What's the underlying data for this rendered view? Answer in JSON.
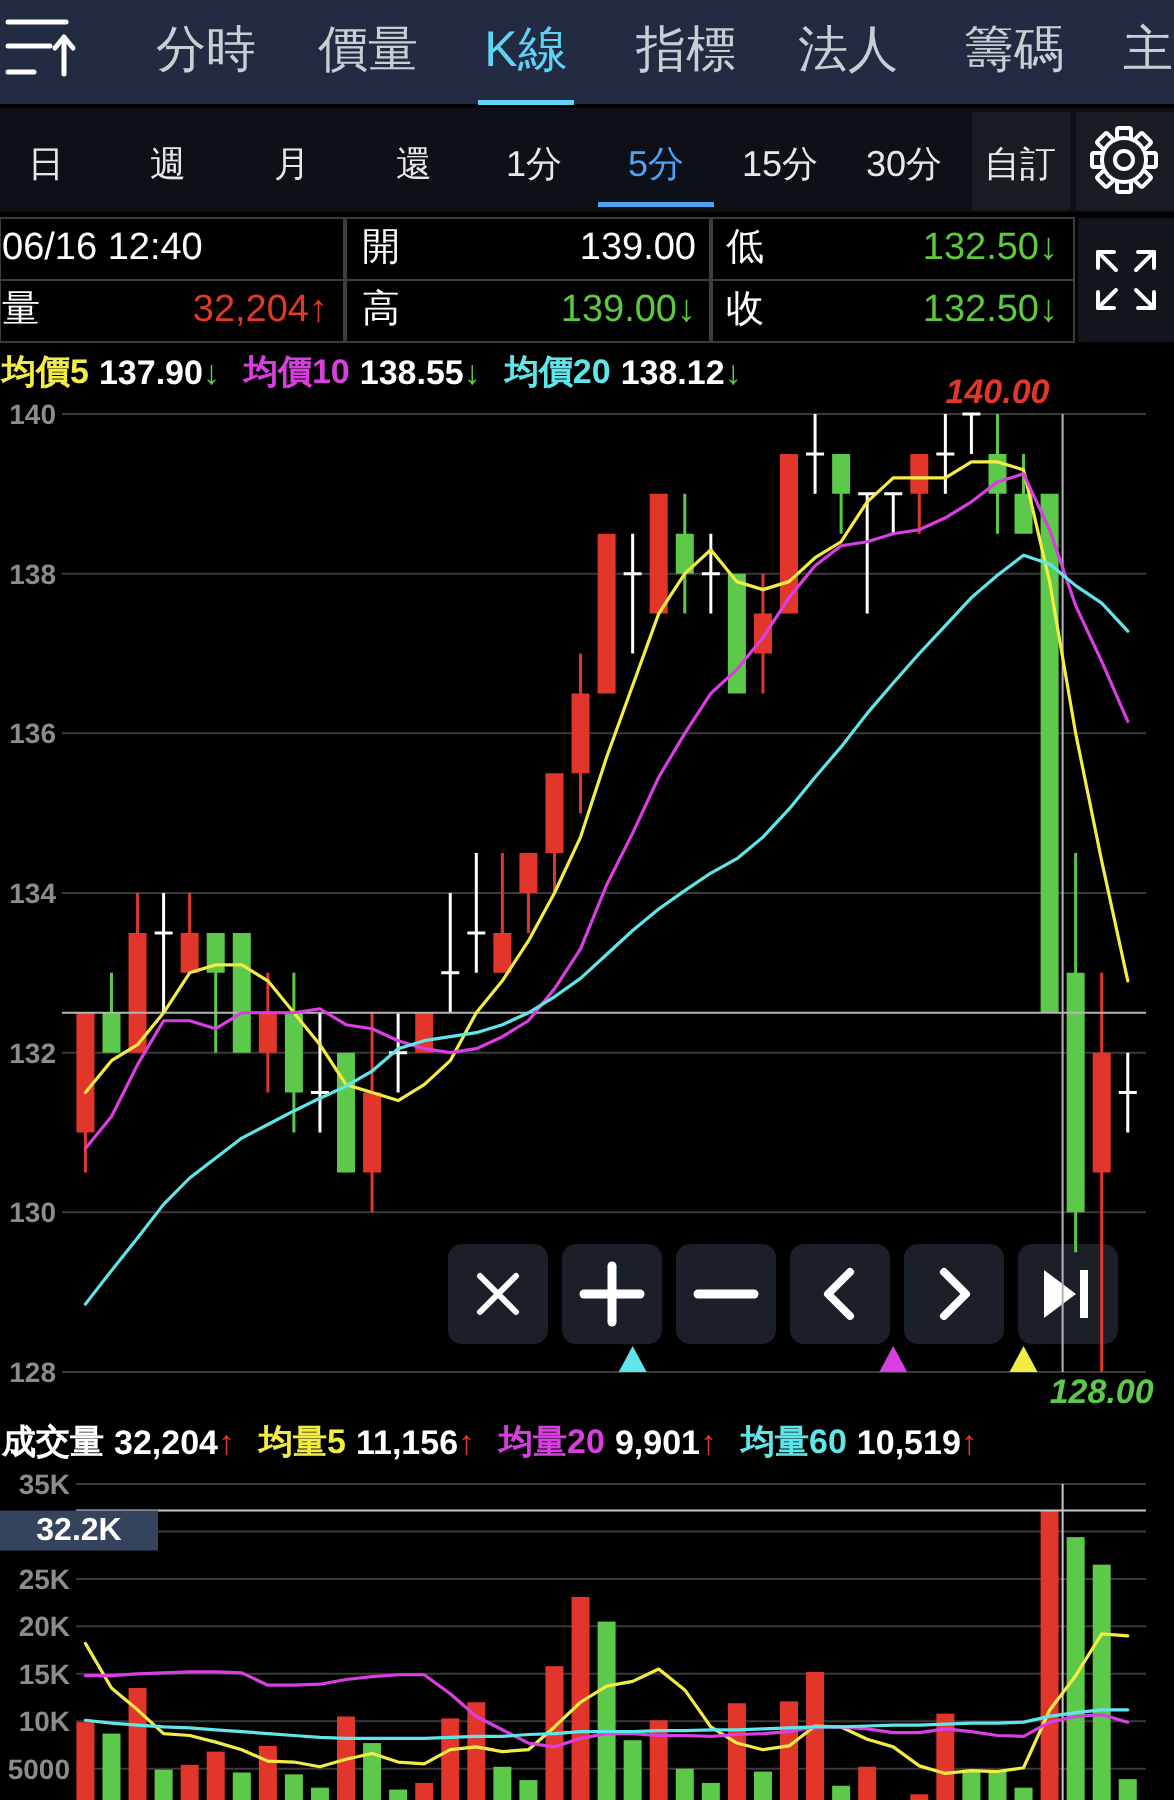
{
  "chart_data": [
    {
      "type": "other",
      "annotations": [
        "分時",
        "價量",
        "K線",
        "指標",
        "法人",
        "籌碼",
        "主",
        "日",
        "週",
        "月",
        "還",
        "1分",
        "5分",
        "15分",
        "30分",
        "自訂",
        "06/16 12:40",
        "開",
        "139.00",
        "低",
        "132.50↓",
        "量",
        "32,204↑",
        "高",
        "139.00↓",
        "收",
        "132.50↓"
      ]
    },
    {
      "type": "candlestick",
      "categories": [
        null,
        null,
        null,
        null,
        null,
        null,
        null,
        null,
        null,
        null,
        null,
        null,
        null,
        null,
        null,
        null,
        null,
        null,
        null,
        null,
        null,
        null,
        null,
        null,
        null,
        null,
        null,
        null,
        null,
        null,
        null,
        null,
        null,
        null,
        null,
        null,
        null,
        null,
        null,
        null,
        null
      ],
      "ohlc": [
        [
          131.0,
          132.5,
          130.5,
          132.5
        ],
        [
          132.5,
          133.0,
          132.0,
          132.0
        ],
        [
          132.0,
          134.0,
          132.0,
          133.5
        ],
        [
          133.5,
          134.0,
          132.5,
          133.5
        ],
        [
          133.0,
          134.0,
          133.0,
          133.5
        ],
        [
          133.5,
          133.5,
          132.0,
          133.0
        ],
        [
          133.5,
          133.5,
          132.0,
          132.0
        ],
        [
          132.0,
          133.0,
          131.5,
          132.5
        ],
        [
          132.5,
          133.0,
          131.0,
          131.5
        ],
        [
          131.5,
          132.5,
          131.0,
          131.5
        ],
        [
          132.0,
          132.0,
          130.5,
          130.5
        ],
        [
          130.5,
          132.5,
          130.0,
          131.5
        ],
        [
          132.0,
          132.5,
          131.5,
          132.0
        ],
        [
          132.0,
          132.5,
          132.0,
          132.5
        ],
        [
          133.0,
          134.0,
          132.5,
          133.0
        ],
        [
          133.5,
          134.5,
          133.0,
          133.5
        ],
        [
          133.0,
          134.5,
          133.0,
          133.5
        ],
        [
          134.0,
          134.5,
          133.5,
          134.5
        ],
        [
          134.5,
          135.5,
          134.0,
          135.5
        ],
        [
          135.5,
          137.0,
          135.0,
          136.5
        ],
        [
          136.5,
          138.5,
          136.5,
          138.5
        ],
        [
          138.0,
          138.5,
          137.0,
          138.0
        ],
        [
          137.5,
          139.0,
          137.5,
          139.0
        ],
        [
          138.5,
          139.0,
          137.5,
          138.0
        ],
        [
          138.0,
          138.5,
          137.5,
          138.0
        ],
        [
          138.0,
          138.0,
          136.5,
          136.5
        ],
        [
          137.0,
          138.0,
          136.5,
          137.5
        ],
        [
          137.5,
          139.5,
          137.5,
          139.5
        ],
        [
          139.5,
          140.0,
          139.0,
          139.5
        ],
        [
          139.5,
          139.5,
          138.5,
          139.0
        ],
        [
          139.0,
          139.0,
          137.5,
          139.0
        ],
        [
          139.0,
          139.0,
          138.5,
          139.0
        ],
        [
          139.0,
          139.5,
          138.5,
          139.5
        ],
        [
          139.5,
          140.0,
          139.0,
          139.5
        ],
        [
          140.0,
          140.0,
          139.5,
          140.0
        ],
        [
          139.5,
          140.0,
          138.5,
          139.0
        ],
        [
          139.0,
          139.5,
          138.5,
          138.5
        ],
        [
          139.0,
          139.0,
          132.5,
          132.5
        ],
        [
          133.0,
          134.5,
          129.5,
          130.0
        ],
        [
          130.5,
          133.0,
          128.0,
          132.0
        ],
        [
          131.5,
          132.0,
          131.0,
          131.5
        ]
      ],
      "colors": [
        "#e3362a",
        "#5dc94b",
        "#e3362a",
        "#ffffff",
        "#e3362a",
        "#5dc94b",
        "#5dc94b",
        "#e3362a",
        "#5dc94b",
        "#ffffff",
        "#5dc94b",
        "#e3362a",
        "#ffffff",
        "#e3362a",
        "#ffffff",
        "#ffffff",
        "#e3362a",
        "#e3362a",
        "#e3362a",
        "#e3362a",
        "#e3362a",
        "#ffffff",
        "#e3362a",
        "#5dc94b",
        "#ffffff",
        "#5dc94b",
        "#e3362a",
        "#e3362a",
        "#ffffff",
        "#5dc94b",
        "#ffffff",
        "#ffffff",
        "#e3362a",
        "#ffffff",
        "#ffffff",
        "#5dc94b",
        "#5dc94b",
        "#5dc94b",
        "#5dc94b",
        "#e3362a",
        "#ffffff"
      ],
      "series": [
        {
          "name": "均價5",
          "type": "line",
          "color": "#f3ec44",
          "values": [
            131.5,
            131.9,
            132.1,
            132.5,
            133.0,
            133.1,
            133.1,
            132.9,
            132.5,
            132.1,
            131.6,
            131.5,
            131.4,
            131.6,
            131.9,
            132.5,
            132.9,
            133.4,
            134.0,
            134.7,
            135.7,
            136.6,
            137.5,
            138.0,
            138.3,
            137.9,
            137.8,
            137.9,
            138.2,
            138.4,
            138.9,
            139.2,
            139.2,
            139.2,
            139.4,
            139.4,
            139.3,
            137.9,
            136.0,
            134.4,
            132.9
          ]
        },
        {
          "name": "均價10",
          "type": "line",
          "color": "#d93fe0",
          "values": [
            130.8,
            131.2,
            131.85,
            132.4,
            132.4,
            132.3,
            132.5,
            132.5,
            132.5,
            132.55,
            132.35,
            132.3,
            132.15,
            132.05,
            132.0,
            132.05,
            132.2,
            132.4,
            132.8,
            133.3,
            134.1,
            134.75,
            135.45,
            136.0,
            136.5,
            136.8,
            137.2,
            137.7,
            138.1,
            138.35,
            138.4,
            138.5,
            138.55,
            138.7,
            138.9,
            139.15,
            139.25,
            138.55,
            137.6,
            136.9,
            136.15
          ]
        },
        {
          "name": "均價20",
          "type": "line",
          "color": "#5fe6ea",
          "values": [
            128.85,
            129.27,
            129.68,
            130.1,
            130.43,
            130.68,
            130.93,
            131.1,
            131.27,
            131.43,
            131.58,
            131.77,
            132.05,
            132.15,
            132.2,
            132.25,
            132.35,
            132.5,
            132.7,
            132.93,
            133.23,
            133.53,
            133.8,
            134.03,
            134.25,
            134.43,
            134.7,
            135.05,
            135.45,
            135.83,
            136.25,
            136.63,
            137.0,
            137.35,
            137.7,
            137.98,
            138.23,
            138.12,
            137.85,
            137.63,
            137.28
          ]
        }
      ],
      "ylim": [
        128,
        140
      ],
      "yticks": [
        140,
        138,
        136,
        134,
        132,
        130,
        128
      ],
      "grid": "y",
      "legend": "top left",
      "ref_lines": [
        {
          "axis": "y",
          "value": 132.5,
          "color": "#b4b4b4"
        }
      ],
      "annotations": [
        "137.90↓",
        "138.55↓",
        "138.12↓",
        {
          "text": "140.00",
          "y": 140
        },
        {
          "text": "128.00",
          "y": 128
        }
      ]
    },
    {
      "type": "bar",
      "categories": [
        null,
        null,
        null,
        null,
        null,
        null,
        null,
        null,
        null,
        null,
        null,
        null,
        null,
        null,
        null,
        null,
        null,
        null,
        null,
        null,
        null,
        null,
        null,
        null,
        null,
        null,
        null,
        null,
        null,
        null,
        null,
        null,
        null,
        null,
        null,
        null,
        null,
        null,
        null,
        null,
        null
      ],
      "legend_title": "成交量",
      "series": [
        {
          "type": "bar",
          "colors": [
            "#e3362a",
            "#5dc94b",
            "#e3362a",
            "#5dc94b",
            "#e3362a",
            "#e3362a",
            "#5dc94b",
            "#e3362a",
            "#5dc94b",
            "#5dc94b",
            "#e3362a",
            "#5dc94b",
            "#5dc94b",
            "#e3362a",
            "#e3362a",
            "#e3362a",
            "#5dc94b",
            "#5dc94b",
            "#e3362a",
            "#e3362a",
            "#5dc94b",
            "#5dc94b",
            "#e3362a",
            "#5dc94b",
            "#5dc94b",
            "#e3362a",
            "#5dc94b",
            "#e3362a",
            "#e3362a",
            "#5dc94b",
            "#e3362a",
            null,
            "#e3362a",
            "#e3362a",
            "#5dc94b",
            "#5dc94b",
            "#5dc94b",
            "#e3362a",
            "#5dc94b",
            "#5dc94b",
            "#5dc94b"
          ],
          "values": [
            9900,
            8700,
            13500,
            4900,
            5400,
            6800,
            4600,
            7400,
            4400,
            3000,
            10500,
            7700,
            2800,
            3500,
            10300,
            12000,
            5200,
            3800,
            15800,
            23100,
            20500,
            8000,
            10100,
            5000,
            3500,
            11900,
            4700,
            12100,
            15200,
            3200,
            5200,
            null,
            2300,
            10800,
            4900,
            4700,
            3000,
            32204,
            29400,
            26500,
            3900
          ]
        },
        {
          "name": "均量5",
          "type": "line",
          "color": "#f3ec44",
          "values": [
            18200,
            13500,
            11200,
            8700,
            8500,
            7800,
            7000,
            5800,
            5700,
            5200,
            6000,
            6600,
            5700,
            5500,
            7000,
            7300,
            6800,
            7000,
            9400,
            12000,
            13700,
            14200,
            15500,
            13300,
            9400,
            7700,
            7000,
            7400,
            9500,
            9400,
            8100,
            7300,
            5300,
            4500,
            4800,
            4700,
            5100,
            11156,
            14800,
            19200,
            19000
          ]
        },
        {
          "name": "均量20",
          "type": "line",
          "color": "#d93fe0",
          "values": [
            14800,
            14800,
            15000,
            15100,
            15200,
            15200,
            15100,
            13800,
            13800,
            13900,
            14400,
            14700,
            14900,
            14900,
            12900,
            10500,
            9100,
            7700,
            7300,
            8200,
            8700,
            8700,
            8500,
            8500,
            8400,
            8600,
            8700,
            8900,
            9400,
            9400,
            9200,
            8800,
            8800,
            9200,
            8900,
            8500,
            8400,
            9901,
            10500,
            10700,
            9900
          ]
        },
        {
          "name": "均量60",
          "type": "line",
          "color": "#5fe6ea",
          "values": [
            10100,
            9800,
            9600,
            9400,
            9300,
            9100,
            8900,
            8700,
            8500,
            8300,
            8200,
            8200,
            8200,
            8200,
            8300,
            8400,
            8400,
            8600,
            8700,
            8900,
            8900,
            8900,
            9000,
            9000,
            9100,
            9100,
            9200,
            9300,
            9400,
            9400,
            9500,
            9600,
            9600,
            9700,
            9800,
            9800,
            9900,
            10519,
            10900,
            11200,
            11200
          ]
        }
      ],
      "ylim": [
        1700,
        35000
      ],
      "yticks": [
        {
          "value": 35000,
          "label": "35K"
        },
        {
          "value": 30000,
          "label": null
        },
        {
          "value": 25000,
          "label": "25K"
        },
        {
          "value": 20000,
          "label": "20K"
        },
        {
          "value": 15000,
          "label": "15K"
        },
        {
          "value": 10000,
          "label": "10K"
        },
        5000
      ],
      "grid": "y",
      "legend": "top left",
      "ref_lines": [
        {
          "axis": "y",
          "value": 32204,
          "label": "32.2K",
          "color": "#c8c8c8"
        }
      ],
      "annotations": [
        "32,204↑",
        "11,156↑",
        "9,901↑",
        "10,519↑"
      ]
    }
  ]
}
